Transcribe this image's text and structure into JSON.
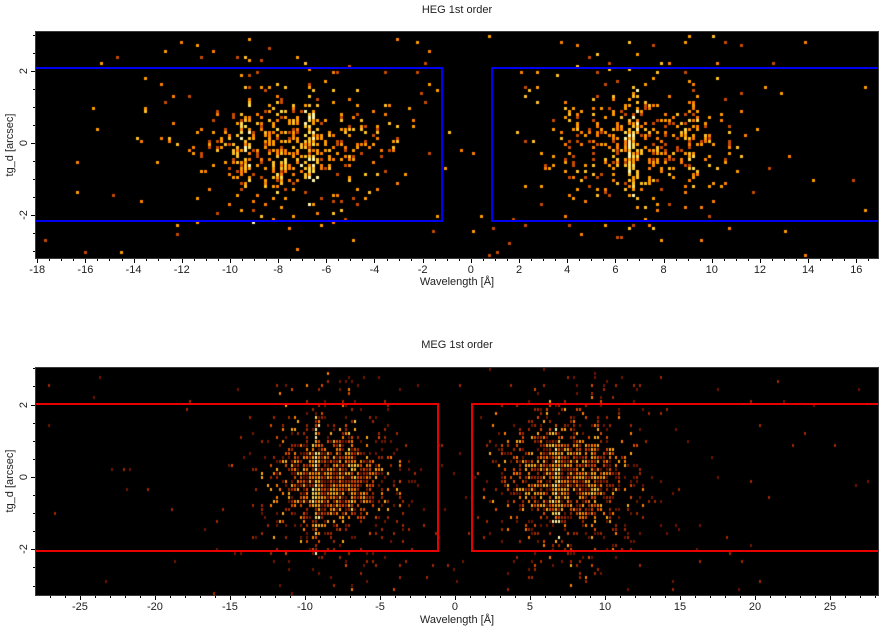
{
  "page": {
    "background": "#ffffff",
    "text_color": "#222222"
  },
  "chart_data": [
    {
      "type": "heatmap",
      "title": "HEG 1st order",
      "xlabel": "Wavelength [Å]",
      "ylabel": "tg_d [arcsec]",
      "xlim": [
        -18.05,
        16.9
      ],
      "ylim": [
        -3.19,
        3.08
      ],
      "xticks": {
        "values": [
          -18,
          -16,
          -14,
          -12,
          -10,
          -8,
          -6,
          -4,
          -2,
          0,
          2,
          4,
          6,
          8,
          10,
          12,
          14,
          16
        ],
        "labels": [
          "-18",
          "-16",
          "-14",
          "-12",
          "-10",
          "-8",
          "-6",
          "-4",
          "-2",
          "0",
          "2",
          "4",
          "6",
          "8",
          "10",
          "12",
          "14",
          "16"
        ]
      },
      "yticks": {
        "values": [
          -2,
          0,
          2
        ],
        "labels": [
          "-2",
          "0",
          "2"
        ]
      },
      "minor_x_step": 0.5,
      "minor_y_step": 0.5,
      "background": "#000000",
      "grid": false,
      "seed": 7,
      "bin": {
        "pitch_x": 4,
        "pitch_y": 3,
        "w": 3,
        "h": 3
      },
      "palette": [
        "#c84b00",
        "#ff8000",
        "#ff9b00",
        "#ffc226",
        "#ffde55",
        "#fff7b0"
      ],
      "regions": {
        "color": "#0000f0",
        "y0": -2.16,
        "y1": 2.07,
        "boxes": [
          [
            -18.4,
            -1.15
          ],
          [
            0.83,
            17.2
          ]
        ]
      },
      "clusters": [
        {
          "kind": "gauss",
          "n": 40,
          "x": -7.0,
          "sx": 4.5,
          "y": 0,
          "sy": 2.2,
          "imin": 0,
          "imax": 2
        },
        {
          "kind": "gauss",
          "n": 40,
          "x": 7.0,
          "sx": 4.0,
          "y": 0,
          "sy": 2.2,
          "imin": 0,
          "imax": 2
        },
        {
          "kind": "gauss",
          "n": 430,
          "x": -7.4,
          "sx": 2.3,
          "y": 0,
          "sy": 0.62,
          "sy2": 1.35,
          "frac2": 0.28,
          "imin": 0,
          "imax": 3
        },
        {
          "kind": "gauss",
          "n": 390,
          "x": 6.9,
          "sx": 2.1,
          "y": 0,
          "sy": 0.62,
          "sy2": 1.35,
          "frac2": 0.28,
          "imin": 0,
          "imax": 3
        },
        {
          "kind": "gauss",
          "n": 65,
          "x": -6.75,
          "sx": 0.14,
          "y": 0,
          "sy": 0.7,
          "sy2": 1.2,
          "frac2": 0.2,
          "imin": 2,
          "imax": 5
        },
        {
          "kind": "gauss",
          "n": 40,
          "x": -9.4,
          "sx": 0.14,
          "y": 0,
          "sy": 0.65,
          "sy2": 1.2,
          "frac2": 0.2,
          "imin": 2,
          "imax": 5
        },
        {
          "kind": "gauss",
          "n": 28,
          "x": -8.0,
          "sx": 0.12,
          "y": 0,
          "sy": 0.7,
          "imin": 1,
          "imax": 4
        },
        {
          "kind": "gauss",
          "n": 70,
          "x": 6.6,
          "sx": 0.13,
          "y": 0,
          "sy": 0.7,
          "imin": 2,
          "imax": 5
        },
        {
          "kind": "gauss",
          "n": 30,
          "x": 9.05,
          "sx": 0.13,
          "y": 0,
          "sy": 0.65,
          "imin": 1,
          "imax": 4
        },
        {
          "kind": "uniform",
          "n": 72,
          "imin": 0,
          "imax": 2
        }
      ]
    },
    {
      "type": "heatmap",
      "title": "MEG 1st order",
      "xlabel": "Wavelength [Å]",
      "ylabel": "tg_d [arcsec]",
      "xlim": [
        -27.93,
        28.2
      ],
      "ylim": [
        -3.26,
        3.01
      ],
      "xticks": {
        "values": [
          -25,
          -20,
          -15,
          -10,
          -5,
          0,
          5,
          10,
          15,
          20,
          25
        ],
        "labels": [
          "-25",
          "-20",
          "-15",
          "-10",
          "-5",
          "0",
          "5",
          "10",
          "15",
          "20",
          "25"
        ]
      },
      "yticks": {
        "values": [
          -2,
          0,
          2
        ],
        "labels": [
          "-2",
          "0",
          "2"
        ]
      },
      "minor_x_step": 1,
      "minor_y_step": 0.5,
      "background": "#000000",
      "grid": false,
      "seed": 11,
      "bin": {
        "pitch_x": 3,
        "pitch_y": 4,
        "w": 2,
        "h": 3
      },
      "palette": [
        "#6f1600",
        "#a02800",
        "#d84a00",
        "#ff7d00",
        "#ffab17",
        "#ffd84e",
        "#fff4ad"
      ],
      "regions": {
        "color": "#e80000",
        "y0": -2.05,
        "y1": 2.02,
        "boxes": [
          [
            -28.4,
            -1.07
          ],
          [
            1.07,
            28.6
          ]
        ]
      },
      "clusters": [
        {
          "kind": "gauss",
          "n": 260,
          "x": -8.3,
          "sx": 3.1,
          "y": 0,
          "sy": 1.7,
          "imin": 0,
          "imax": 1
        },
        {
          "kind": "gauss",
          "n": 280,
          "x": 7.8,
          "sx": 3.4,
          "y": 0,
          "sy": 1.7,
          "imin": 0,
          "imax": 1
        },
        {
          "kind": "gauss",
          "n": 30,
          "x": 5.0,
          "sx": 4.0,
          "y": 0,
          "sy": 2.4,
          "imin": 0,
          "imax": 1
        },
        {
          "kind": "gauss",
          "n": 25,
          "x": -8.0,
          "sx": 4.0,
          "y": 0,
          "sy": 2.4,
          "imin": 0,
          "imax": 1
        },
        {
          "kind": "gauss",
          "n": 950,
          "x": -8.3,
          "sx": 1.75,
          "y": 0,
          "sy": 0.5,
          "sy2": 1.15,
          "frac2": 0.3,
          "imin": 0,
          "imax": 4
        },
        {
          "kind": "gauss",
          "n": 950,
          "x": 7.4,
          "sx": 1.95,
          "y": 0,
          "sy": 0.52,
          "sy2": 1.2,
          "frac2": 0.3,
          "imin": 0,
          "imax": 4
        },
        {
          "kind": "gauss",
          "n": 120,
          "x": -9.3,
          "sx": 0.09,
          "y": 0,
          "sy": 0.6,
          "sy2": 1.1,
          "frac2": 0.25,
          "imin": 3,
          "imax": 6
        },
        {
          "kind": "gauss",
          "n": 60,
          "x": -6.95,
          "sx": 0.1,
          "y": 0,
          "sy": 0.6,
          "imin": 2,
          "imax": 5
        },
        {
          "kind": "gauss",
          "n": 130,
          "x": 6.7,
          "sx": 0.09,
          "y": 0,
          "sy": 0.62,
          "imin": 3,
          "imax": 6
        },
        {
          "kind": "gauss",
          "n": 55,
          "x": 9.2,
          "sx": 0.1,
          "y": 0,
          "sy": 0.6,
          "imin": 2,
          "imax": 5
        },
        {
          "kind": "uniform",
          "n": 95,
          "imin": 0,
          "imax": 1
        }
      ]
    }
  ]
}
